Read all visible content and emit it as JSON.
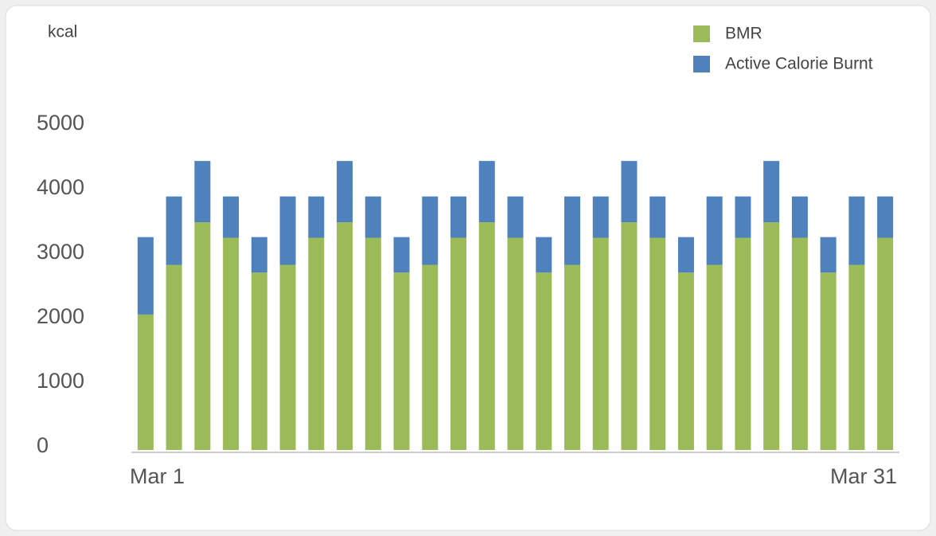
{
  "chart_data": {
    "type": "stacked_bar",
    "ylabel": "kcal",
    "categories": [
      "Mar 1",
      null,
      null,
      null,
      null,
      null,
      null,
      null,
      null,
      null,
      null,
      null,
      null,
      null,
      null,
      null,
      null,
      null,
      null,
      null,
      null,
      null,
      null,
      null,
      null,
      null,
      "Mar 31"
    ],
    "series": [
      {
        "name": "BMR",
        "color": "#9bbb59",
        "values": [
          2100,
          2870,
          3530,
          3290,
          2750,
          2870,
          3290,
          3530,
          3290,
          2750,
          2870,
          3290,
          3530,
          3290,
          2750,
          2870,
          3290,
          3530,
          3290,
          2750,
          2870,
          3290,
          3530,
          3290,
          2750,
          2870,
          3290
        ]
      },
      {
        "name": "Active Calorie Burnt",
        "color": "#4f81bd",
        "values": [
          1200,
          1060,
          950,
          640,
          550,
          1060,
          640,
          950,
          640,
          550,
          1060,
          640,
          950,
          640,
          550,
          1060,
          640,
          950,
          640,
          550,
          1060,
          640,
          950,
          640,
          550,
          1060,
          640
        ]
      }
    ],
    "ylim": [
      0,
      5000
    ],
    "yticks": [
      0,
      1000,
      2000,
      3000,
      4000,
      5000
    ],
    "grid": false,
    "legend": "top-right"
  }
}
